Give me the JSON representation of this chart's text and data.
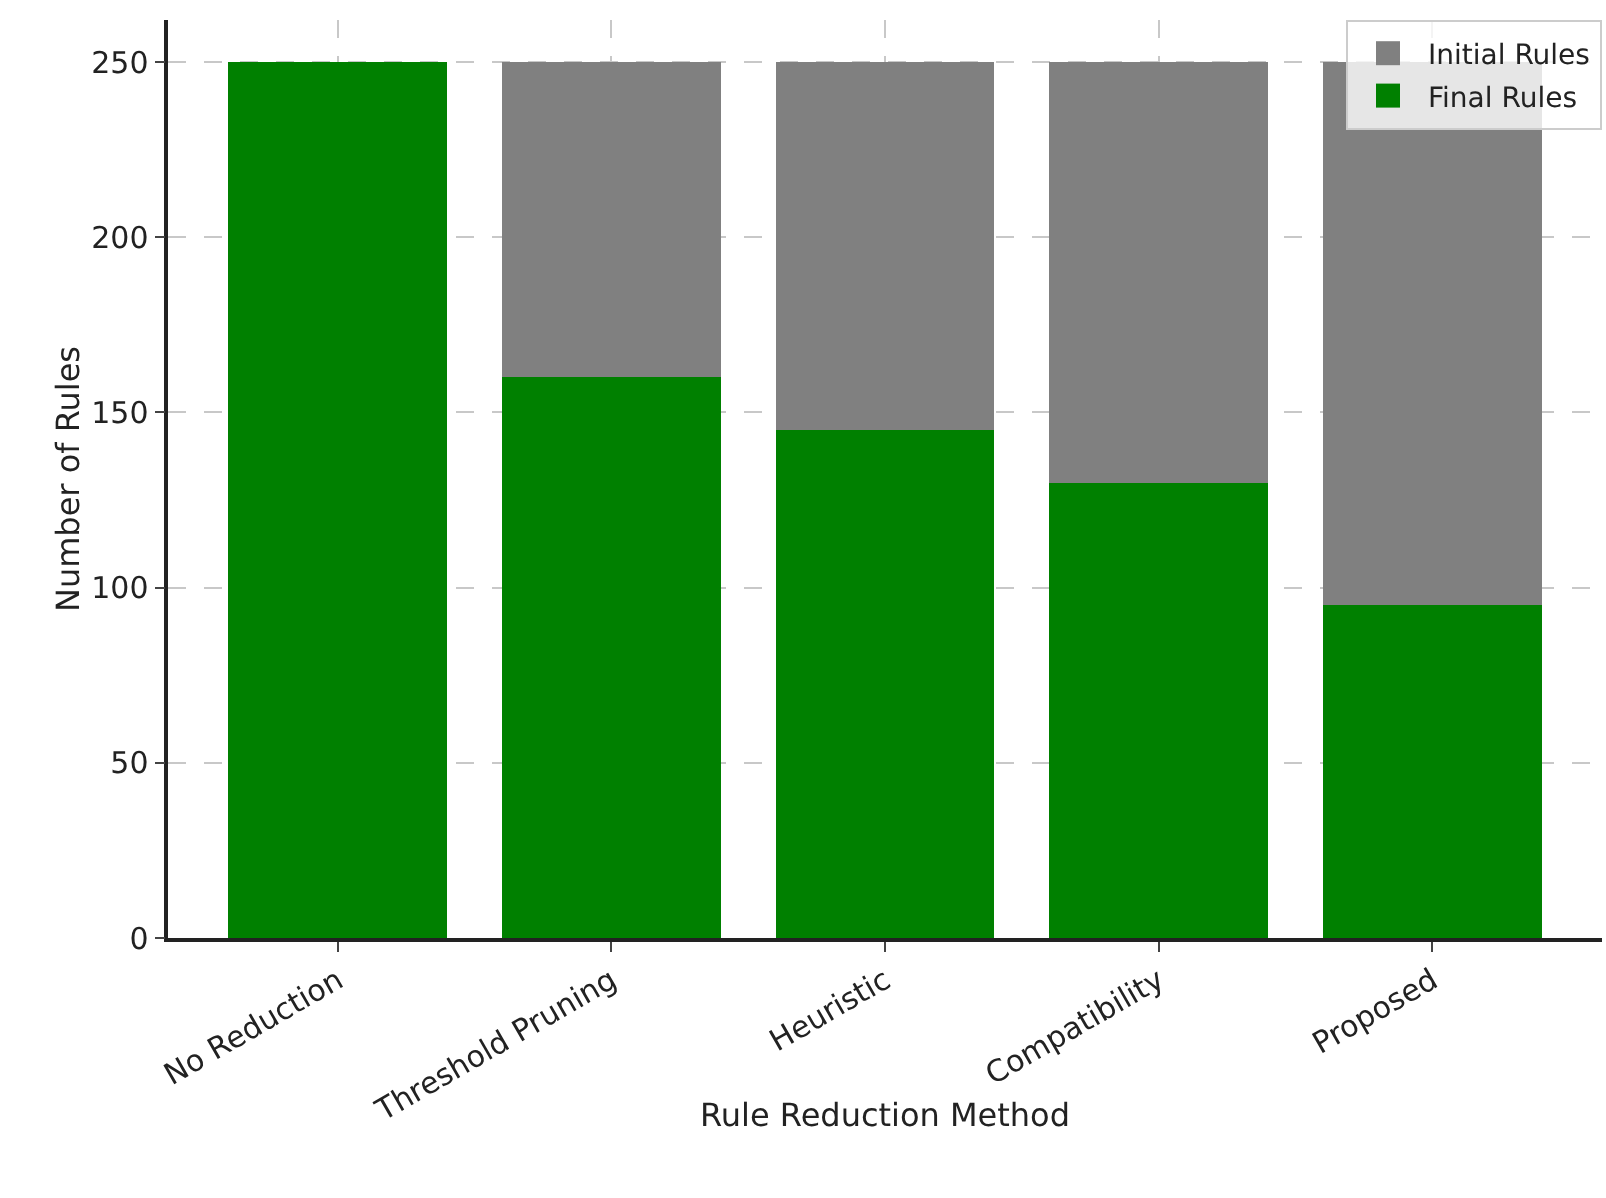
{
  "chart_data": {
    "type": "bar",
    "xlabel": "Rule Reduction Method",
    "ylabel": "Number of Rules",
    "categories": [
      "No Reduction",
      "Threshold Pruning",
      "Heuristic",
      "Compatibility",
      "Proposed"
    ],
    "stacked": true,
    "series": [
      {
        "name": "Final Rules",
        "color": "#008000",
        "values": [
          250,
          160,
          145,
          130,
          95
        ]
      },
      {
        "name": "Initial Rules",
        "color": "#808080",
        "values": [
          0,
          90,
          105,
          120,
          155
        ]
      }
    ],
    "ylim": [
      0,
      262
    ],
    "yticks": [
      0,
      50,
      100,
      150,
      200,
      250
    ],
    "grid": true,
    "legend": "top right"
  }
}
